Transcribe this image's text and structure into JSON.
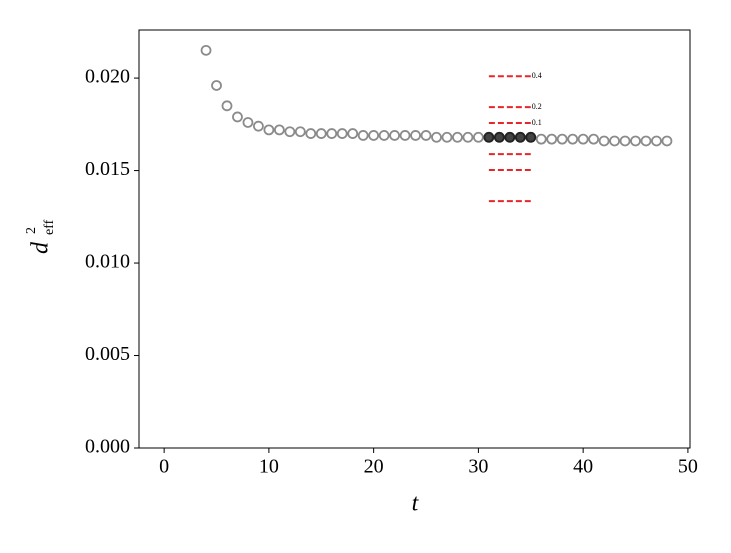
{
  "chart_data": {
    "type": "scatter",
    "x_label": "t",
    "y_label": {
      "base": "d",
      "sup": "2",
      "sub": "eff"
    },
    "series": [
      {
        "color": "#6e6e6e",
        "x": [
          4,
          5,
          6,
          7,
          8,
          9,
          10,
          11,
          12,
          13,
          14,
          15,
          16,
          17,
          18,
          19,
          20,
          21,
          22,
          23,
          24,
          25,
          26,
          27,
          28,
          29,
          30,
          31,
          32,
          33,
          34,
          35,
          36,
          37,
          38,
          39,
          40,
          41,
          42,
          43,
          44,
          45,
          46,
          47,
          48
        ],
        "values": [
          0.0215,
          0.0196,
          0.0185,
          0.0179,
          0.0176,
          0.0174,
          0.0172,
          0.0172,
          0.0171,
          0.0171,
          0.017,
          0.017,
          0.017,
          0.017,
          0.017,
          0.0169,
          0.0169,
          0.0169,
          0.0169,
          0.0169,
          0.0169,
          0.0169,
          0.0168,
          0.0168,
          0.0168,
          0.0168,
          0.0168,
          0.0168,
          0.0168,
          0.0168,
          0.0168,
          0.0168,
          0.0167,
          0.0167,
          0.0167,
          0.0167,
          0.0167,
          0.0167,
          0.0166,
          0.0166,
          0.0166,
          0.0166,
          0.0166,
          0.0166,
          0.0166
        ]
      },
      {
        "color": "#222222",
        "x": [
          31,
          32,
          33,
          34,
          35
        ],
        "values": [
          0.0168,
          0.0168,
          0.0168,
          0.0168,
          0.0168
        ]
      }
    ],
    "reference_lines": {
      "x": [
        31,
        35
      ],
      "color": "#e8262a",
      "lines": [
        {
          "value": 0.0201,
          "label": "0.4"
        },
        {
          "value": 0.01843,
          "label": "0.2"
        },
        {
          "value": 0.01757,
          "label": "0.1"
        },
        0.01589,
        0.01503,
        0.01335
      ]
    },
    "xlim": [
      -2.4,
      50.2
    ],
    "ylim": [
      0,
      0.0226
    ],
    "xticks": [
      0,
      10,
      20,
      30,
      40,
      50
    ],
    "yticks": [
      {
        "value": 0,
        "label": "0.000"
      },
      {
        "value": 0.005,
        "label": "0.005"
      },
      {
        "value": 0.01,
        "label": "0.010"
      },
      {
        "value": 0.015,
        "label": "0.015"
      },
      {
        "value": 0.02,
        "label": "0.020"
      }
    ]
  }
}
